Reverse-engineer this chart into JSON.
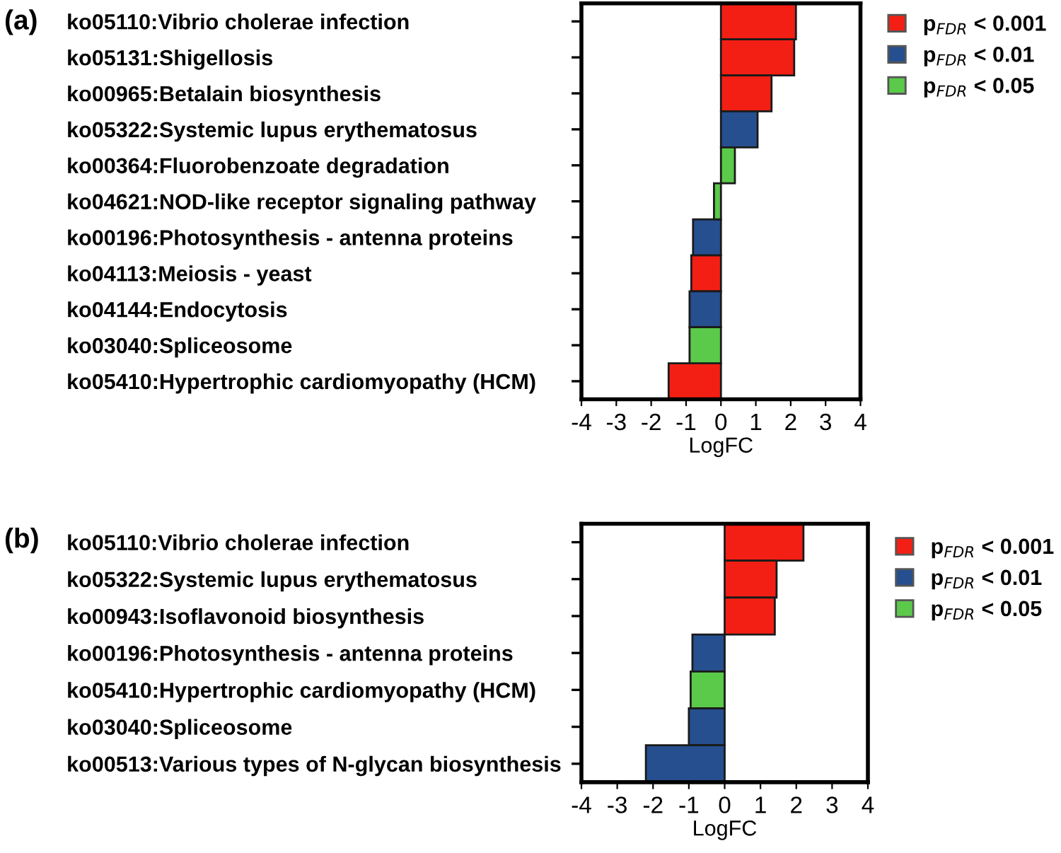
{
  "chart_data": [
    {
      "type": "bar",
      "orientation": "horizontal",
      "xlabel": "LogFC",
      "annotations": [
        "(a)"
      ],
      "categories": [
        "ko05110:Vibrio cholerae infection",
        "ko05131:Shigellosis",
        "ko00965:Betalain biosynthesis",
        "ko05322:Systemic lupus erythematosus",
        "ko00364:Fluorobenzoate degradation",
        "ko04621:NOD-like receptor signaling pathway",
        "ko00196:Photosynthesis - antenna proteins",
        "ko04113:Meiosis - yeast",
        "ko04144:Endocytosis",
        "ko03040:Spliceosome",
        "ko05410:Hypertrophic cardiomyopathy (HCM)"
      ],
      "series": [
        {
          "name": "p$_{FDR}$ < 0.001",
          "color": "#f41f14",
          "values": [
            2.15,
            2.1,
            1.45,
            null,
            null,
            null,
            null,
            -0.85,
            null,
            null,
            -1.5
          ]
        },
        {
          "name": "p$_{FDR}$ < 0.01",
          "color": "#264f8f",
          "values": [
            null,
            null,
            null,
            1.05,
            null,
            null,
            -0.8,
            null,
            -0.9,
            null,
            null
          ]
        },
        {
          "name": "p$_{FDR}$ < 0.05",
          "color": "#5bc94a",
          "values": [
            null,
            null,
            null,
            null,
            0.4,
            -0.2,
            null,
            null,
            null,
            -0.9,
            null
          ]
        }
      ],
      "xlim": [
        -4,
        4
      ],
      "xticks": [
        -4,
        -3,
        -2,
        -1,
        0,
        1,
        2,
        3,
        4
      ],
      "grid": false,
      "legend": "right"
    },
    {
      "type": "bar",
      "orientation": "horizontal",
      "xlabel": "LogFC",
      "annotations": [
        "(b)"
      ],
      "categories": [
        "ko05110:Vibrio cholerae infection",
        "ko05322:Systemic lupus erythematosus",
        "ko00943:Isoflavonoid biosynthesis",
        "ko00196:Photosynthesis - antenna proteins",
        "ko05410:Hypertrophic cardiomyopathy (HCM)",
        "ko03040:Spliceosome",
        "ko00513:Various types of N-glycan biosynthesis"
      ],
      "series": [
        {
          "name": "p$_{FDR}$ < 0.001",
          "color": "#f41f14",
          "values": [
            2.2,
            1.45,
            1.4,
            null,
            null,
            null,
            null
          ]
        },
        {
          "name": "p$_{FDR}$ < 0.01",
          "color": "#264f8f",
          "values": [
            null,
            null,
            null,
            -0.9,
            null,
            -1.0,
            -2.2
          ]
        },
        {
          "name": "p$_{FDR}$ < 0.05",
          "color": "#5bc94a",
          "values": [
            null,
            null,
            null,
            null,
            -0.95,
            null,
            null
          ]
        }
      ],
      "xlim": [
        -4,
        4
      ],
      "xticks": [
        -4,
        -3,
        -2,
        -1,
        0,
        1,
        2,
        3,
        4
      ],
      "grid": false,
      "legend": "right"
    }
  ]
}
